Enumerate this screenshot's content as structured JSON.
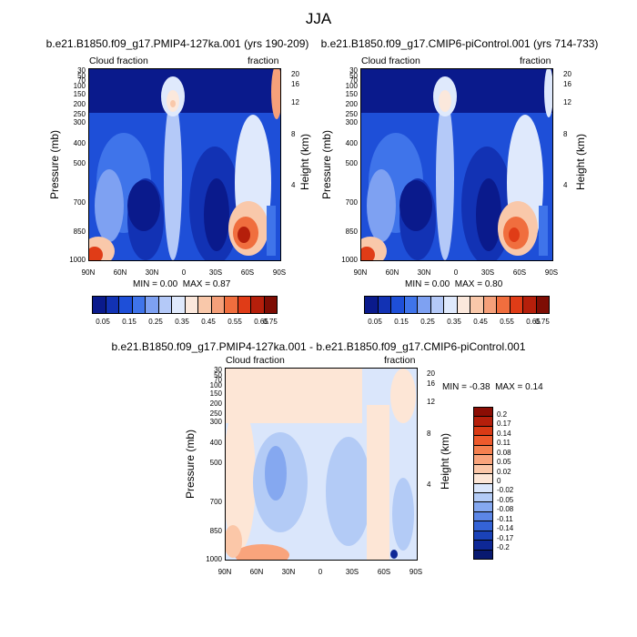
{
  "main_title": "JJA",
  "chart_data": [
    {
      "type": "heatmap",
      "title": "b.e21.B1850.f09_g17.PMIP4-127ka.001 (yrs 190-209)",
      "left_label": "Cloud fraction",
      "right_label": "fraction",
      "ylabel": "Pressure (mb)",
      "y2label": "Height (km)",
      "x_ticks": [
        "90N",
        "60N",
        "30N",
        "0",
        "30S",
        "60S",
        "90S"
      ],
      "y_ticks": [
        "30",
        "50",
        "70",
        "100",
        "150",
        "200",
        "250",
        "300",
        "400",
        "500",
        "700",
        "850",
        "1000"
      ],
      "y2_ticks": [
        "20",
        "16",
        "12",
        "8",
        "4"
      ],
      "min_label": "MIN =",
      "min": "0.00",
      "max_label": "MAX =",
      "max": "0.87",
      "colorbar_labels": [
        "0.05",
        "0.15",
        "0.25",
        "0.35",
        "0.45",
        "0.55",
        "0.65",
        "0.75"
      ],
      "colorbar_colors": [
        "#0a1a8c",
        "#1232b4",
        "#1e4fd8",
        "#3f74ea",
        "#7ea1f2",
        "#b4c9f8",
        "#dfe9fc",
        "#fbe8dc",
        "#f9c8aa",
        "#f5a07a",
        "#f06e3e",
        "#e03c17",
        "#b51f0b",
        "#7e0d04"
      ]
    },
    {
      "type": "heatmap",
      "title": "b.e21.B1850.f09_g17.CMIP6-piControl.001 (yrs 714-733)",
      "left_label": "Cloud fraction",
      "right_label": "fraction",
      "ylabel": "Pressure (mb)",
      "y2label": "Height (km)",
      "x_ticks": [
        "90N",
        "60N",
        "30N",
        "0",
        "30S",
        "60S",
        "90S"
      ],
      "y_ticks": [
        "30",
        "50",
        "70",
        "100",
        "150",
        "200",
        "250",
        "300",
        "400",
        "500",
        "700",
        "850",
        "1000"
      ],
      "y2_ticks": [
        "20",
        "16",
        "12",
        "8",
        "4"
      ],
      "min_label": "MIN =",
      "min": "0.00",
      "max_label": "MAX =",
      "max": "0.80",
      "colorbar_labels": [
        "0.05",
        "0.15",
        "0.25",
        "0.35",
        "0.45",
        "0.55",
        "0.65",
        "0.75"
      ],
      "colorbar_colors": [
        "#0a1a8c",
        "#1232b4",
        "#1e4fd8",
        "#3f74ea",
        "#7ea1f2",
        "#b4c9f8",
        "#dfe9fc",
        "#fbe8dc",
        "#f9c8aa",
        "#f5a07a",
        "#f06e3e",
        "#e03c17",
        "#b51f0b",
        "#7e0d04"
      ]
    },
    {
      "type": "heatmap",
      "title": "b.e21.B1850.f09_g17.PMIP4-127ka.001 - b.e21.B1850.f09_g17.CMIP6-piControl.001",
      "left_label": "Cloud fraction",
      "right_label": "fraction",
      "ylabel": "Pressure (mb)",
      "y2label": "Height (km)",
      "x_ticks": [
        "90N",
        "60N",
        "30N",
        "0",
        "30S",
        "60S",
        "90S"
      ],
      "y_ticks": [
        "30",
        "50",
        "70",
        "100",
        "150",
        "200",
        "250",
        "300",
        "400",
        "500",
        "700",
        "850",
        "1000"
      ],
      "y2_ticks": [
        "20",
        "16",
        "12",
        "8",
        "4"
      ],
      "min_label": "MIN =",
      "min": "-0.38",
      "max_label": "MAX =",
      "max": "0.14",
      "colorbar_labels": [
        "0.2",
        "0.17",
        "0.14",
        "0.11",
        "0.08",
        "0.05",
        "0.02",
        "0",
        "-0.02",
        "-0.05",
        "-0.08",
        "-0.11",
        "-0.14",
        "-0.17",
        "-0.2"
      ],
      "colorbar_colors": [
        "#8b0d04",
        "#b51f0b",
        "#d93a15",
        "#ee5a2c",
        "#f5804f",
        "#f9a47c",
        "#fbc7a8",
        "#fde6d6",
        "#dae6fb",
        "#b3cbf6",
        "#85a8f0",
        "#5c86e6",
        "#3463d6",
        "#1a42b8",
        "#0e2896",
        "#081970"
      ]
    }
  ]
}
